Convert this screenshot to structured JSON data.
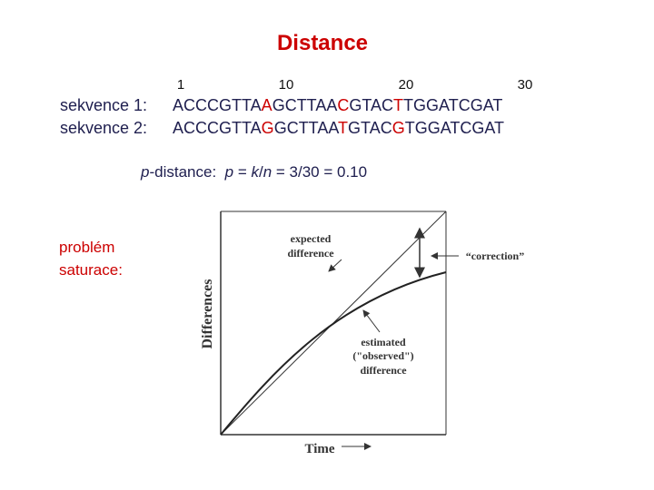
{
  "title": "Distance",
  "ruler": [
    "1",
    "10",
    "20",
    "30"
  ],
  "sequences": [
    {
      "label": "sekvence 1:",
      "segments": [
        {
          "text": "ACCCGTTA",
          "highlight": false
        },
        {
          "text": "A",
          "highlight": true
        },
        {
          "text": "GCTTAA",
          "highlight": false
        },
        {
          "text": "C",
          "highlight": true
        },
        {
          "text": "GTAC",
          "highlight": false
        },
        {
          "text": "T",
          "highlight": true
        },
        {
          "text": "TGGATCGAT",
          "highlight": false
        }
      ]
    },
    {
      "label": "sekvence 2:",
      "segments": [
        {
          "text": "ACCCGTTA",
          "highlight": false
        },
        {
          "text": "G",
          "highlight": true
        },
        {
          "text": "GCTTAA",
          "highlight": false
        },
        {
          "text": "T",
          "highlight": true
        },
        {
          "text": "GTAC",
          "highlight": false
        },
        {
          "text": "G",
          "highlight": true
        },
        {
          "text": "TGGATCGAT",
          "highlight": false
        }
      ]
    }
  ],
  "formula": [
    {
      "text": "p",
      "italic": true
    },
    {
      "text": "-distance:  ",
      "italic": false
    },
    {
      "text": "p",
      "italic": true
    },
    {
      "text": " = ",
      "italic": false
    },
    {
      "text": "k",
      "italic": true
    },
    {
      "text": "/",
      "italic": false
    },
    {
      "text": "n",
      "italic": true
    },
    {
      "text": " = 3/30 = 0.10",
      "italic": false
    }
  ],
  "side_label": [
    "problém",
    "saturace:"
  ],
  "figure": {
    "y_label": "Differences",
    "x_label": "Time",
    "expected": [
      "expected",
      "difference"
    ],
    "correction": "“correction”",
    "estimated": [
      "estimated",
      "(\"observed\")",
      "difference"
    ]
  }
}
